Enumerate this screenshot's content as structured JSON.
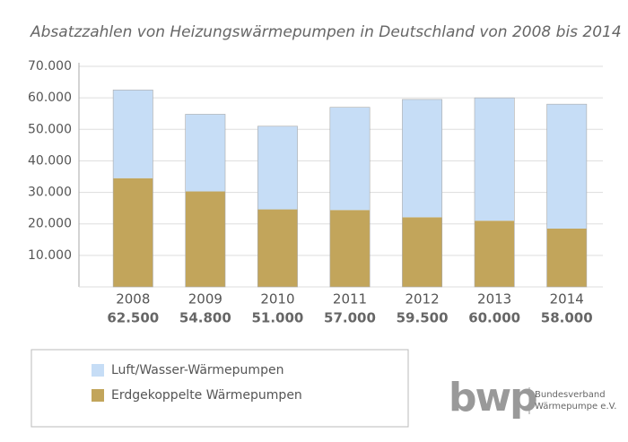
{
  "chart_data": {
    "type": "stacked_bar",
    "title": "Absatzzahlen von Heizungswärmepumpen in Deutschland von 2008 bis 2014",
    "categories": [
      "2008",
      "2009",
      "2010",
      "2011",
      "2012",
      "2013",
      "2014"
    ],
    "totals": [
      {
        "value": 62500,
        "label": "62.500"
      },
      {
        "value": 54800,
        "label": "54.800"
      },
      {
        "value": 51000,
        "label": "51.000"
      },
      {
        "value": 57000,
        "label": "57.000"
      },
      {
        "value": 59500,
        "label": "59.500"
      },
      {
        "value": 60000,
        "label": "60.000"
      },
      {
        "value": 58000,
        "label": "58.000"
      }
    ],
    "series": [
      {
        "name": "Erdgekoppelte Wärmepumpen",
        "color": "#c2a55b",
        "values": [
          34500,
          30300,
          24600,
          24400,
          22100,
          21000,
          18500
        ]
      },
      {
        "name": "Luft/Wasser-Wärmepumpen",
        "color": "#c6ddf6",
        "values": [
          28000,
          24500,
          26400,
          32600,
          37400,
          39000,
          39500
        ]
      }
    ],
    "ylim": [
      0,
      70000
    ],
    "yticks": [
      {
        "value": 10000,
        "label": "10.000"
      },
      {
        "value": 20000,
        "label": "20.000"
      },
      {
        "value": 30000,
        "label": "30.000"
      },
      {
        "value": 40000,
        "label": "40.000"
      },
      {
        "value": 50000,
        "label": "50.000"
      },
      {
        "value": 60000,
        "label": "60.000"
      },
      {
        "value": 70000,
        "label": "70.000"
      }
    ],
    "grid": true,
    "logo": {
      "mark": "bwp",
      "line1": "Bundesverband",
      "line2": "Wärmepumpe e.V."
    }
  }
}
